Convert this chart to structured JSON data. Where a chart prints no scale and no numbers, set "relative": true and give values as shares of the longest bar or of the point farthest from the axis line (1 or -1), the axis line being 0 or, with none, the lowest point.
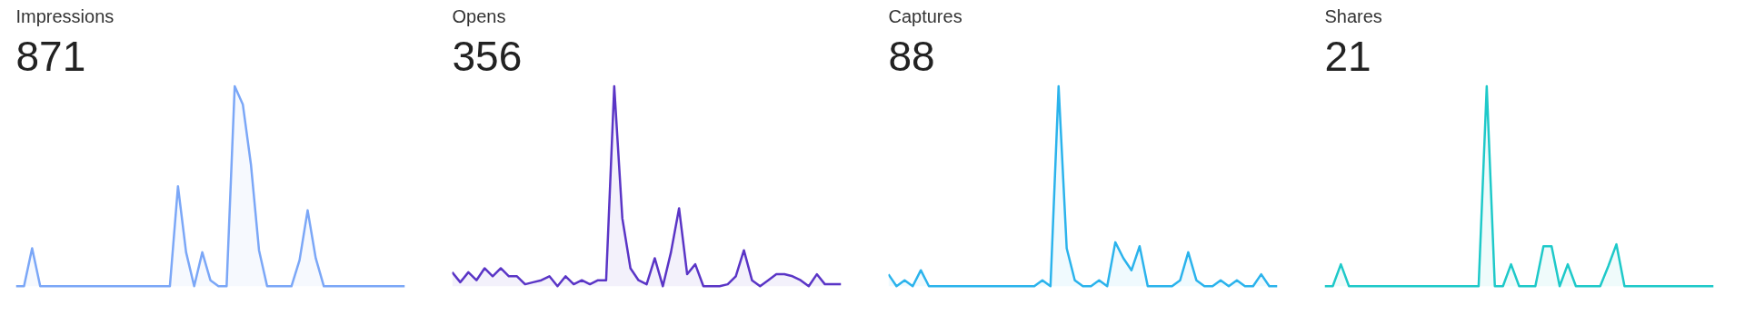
{
  "chart_data": [
    {
      "type": "area",
      "title": "Impressions",
      "subtitle": "871",
      "relative": true,
      "categories": [
        null,
        null,
        null,
        null,
        null,
        null,
        null,
        null,
        null,
        null,
        null,
        null,
        null,
        null,
        null,
        null,
        null,
        null,
        null,
        null,
        null,
        null,
        null,
        null,
        null,
        null,
        null,
        null,
        null,
        null,
        null,
        null,
        null,
        null,
        null,
        null,
        null,
        null,
        null,
        null,
        null,
        null,
        null,
        null,
        null,
        null,
        null,
        null,
        null
      ],
      "series": [
        {
          "color": "#7ba7f7",
          "values": [
            0,
            0,
            0.19,
            0,
            0,
            0,
            0,
            0,
            0,
            0,
            0,
            0,
            0,
            0,
            0,
            0,
            0,
            0,
            0,
            0,
            0.5,
            0.17,
            0,
            0.17,
            0.03,
            0,
            0,
            1,
            0.91,
            0.61,
            0.18,
            0,
            0,
            0,
            0,
            0.13,
            0.38,
            0.14,
            0,
            0,
            0,
            0,
            0,
            0,
            0,
            0,
            0,
            0,
            0
          ]
        }
      ]
    },
    {
      "type": "area",
      "title": "Opens",
      "subtitle": "356",
      "relative": true,
      "categories": [
        null,
        null,
        null,
        null,
        null,
        null,
        null,
        null,
        null,
        null,
        null,
        null,
        null,
        null,
        null,
        null,
        null,
        null,
        null,
        null,
        null,
        null,
        null,
        null,
        null,
        null,
        null,
        null,
        null,
        null,
        null,
        null,
        null,
        null,
        null,
        null,
        null,
        null,
        null,
        null,
        null,
        null,
        null,
        null,
        null,
        null,
        null,
        null,
        null
      ],
      "series": [
        {
          "color": "#5a35c6",
          "values": [
            0.07,
            0.02,
            0.07,
            0.03,
            0.09,
            0.05,
            0.09,
            0.05,
            0.05,
            0.01,
            0.02,
            0.03,
            0.05,
            0,
            0.05,
            0.01,
            0.03,
            0.01,
            0.03,
            0.03,
            1,
            0.34,
            0.09,
            0.03,
            0.01,
            0.14,
            0,
            0.17,
            0.39,
            0.06,
            0.11,
            0,
            0,
            0,
            0.01,
            0.05,
            0.18,
            0.03,
            0,
            0.03,
            0.06,
            0.06,
            0.05,
            0.03,
            0,
            0.06,
            0.01,
            0.01,
            0.01
          ]
        }
      ]
    },
    {
      "type": "area",
      "title": "Captures",
      "subtitle": "88",
      "relative": true,
      "categories": [
        null,
        null,
        null,
        null,
        null,
        null,
        null,
        null,
        null,
        null,
        null,
        null,
        null,
        null,
        null,
        null,
        null,
        null,
        null,
        null,
        null,
        null,
        null,
        null,
        null,
        null,
        null,
        null,
        null,
        null,
        null,
        null,
        null,
        null,
        null,
        null,
        null,
        null,
        null,
        null,
        null,
        null,
        null,
        null,
        null,
        null,
        null,
        null,
        null
      ],
      "series": [
        {
          "color": "#2bb3ec",
          "values": [
            0.06,
            0,
            0.03,
            0,
            0.08,
            0,
            0,
            0,
            0,
            0,
            0,
            0,
            0,
            0,
            0,
            0,
            0,
            0,
            0,
            0.03,
            0,
            1,
            0.19,
            0.03,
            0,
            0,
            0.03,
            0,
            0.22,
            0.14,
            0.08,
            0.2,
            0,
            0,
            0,
            0,
            0.03,
            0.17,
            0.03,
            0,
            0,
            0.03,
            0,
            0.03,
            0,
            0,
            0.06,
            0,
            0
          ]
        }
      ]
    },
    {
      "type": "area",
      "title": "Shares",
      "subtitle": "21",
      "relative": true,
      "categories": [
        null,
        null,
        null,
        null,
        null,
        null,
        null,
        null,
        null,
        null,
        null,
        null,
        null,
        null,
        null,
        null,
        null,
        null,
        null,
        null,
        null,
        null,
        null,
        null,
        null,
        null,
        null,
        null,
        null,
        null,
        null,
        null,
        null,
        null,
        null,
        null,
        null,
        null,
        null,
        null,
        null,
        null,
        null,
        null,
        null,
        null,
        null,
        null,
        null
      ],
      "series": [
        {
          "color": "#1ec9c9",
          "values": [
            0,
            0,
            0.11,
            0,
            0,
            0,
            0,
            0,
            0,
            0,
            0,
            0,
            0,
            0,
            0,
            0,
            0,
            0,
            0,
            0,
            1,
            0,
            0,
            0.11,
            0,
            0,
            0,
            0.2,
            0.2,
            0,
            0.11,
            0,
            0,
            0,
            0,
            0.1,
            0.21,
            0,
            0,
            0,
            0,
            0,
            0,
            0,
            0,
            0,
            0,
            0,
            0
          ]
        }
      ]
    }
  ]
}
